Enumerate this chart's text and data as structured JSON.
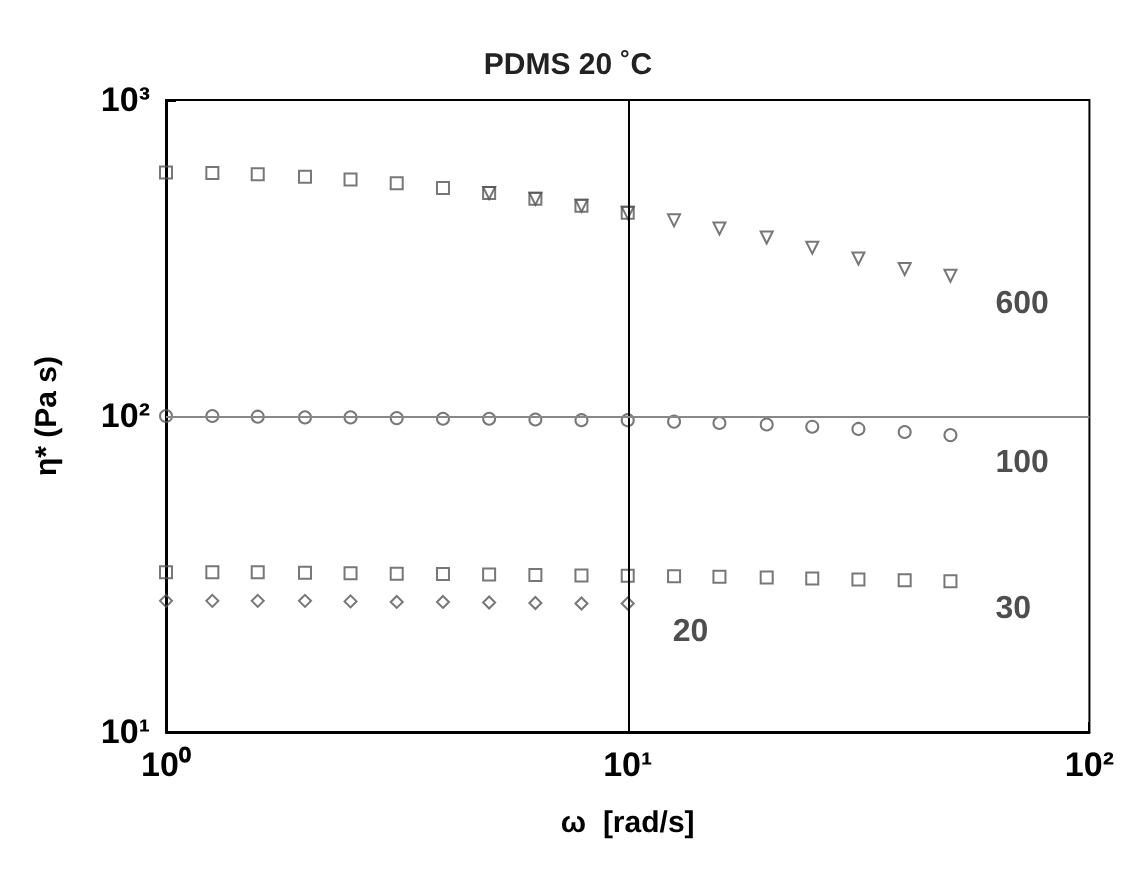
{
  "chart_data": {
    "type": "scatter",
    "title": "PDMS 20 ˚C",
    "xlabel": "ω  [rad/s]",
    "ylabel": "η* (Pa s)",
    "log": "xy",
    "grid": false,
    "legend": false,
    "xlim": [
      1,
      100
    ],
    "ylim": [
      10,
      1000
    ],
    "xticks": [
      {
        "value": 1,
        "label": "10⁰"
      },
      {
        "value": 10,
        "label": "10¹"
      },
      {
        "value": 100,
        "label": "10²"
      }
    ],
    "yticks": [
      {
        "value": 10,
        "label": "10¹"
      },
      {
        "value": 100,
        "label": "10²"
      },
      {
        "value": 1000,
        "label": "10³"
      }
    ],
    "ref_lines": [
      {
        "axis": "x",
        "value": 10,
        "color": "#000000"
      },
      {
        "axis": "y",
        "value": 100,
        "color": "#888888"
      }
    ],
    "series": [
      {
        "marker": "square",
        "color": "#555555",
        "x": [
          1,
          1.26,
          1.58,
          2,
          2.51,
          3.16,
          3.98,
          5.01,
          6.31,
          7.94,
          10
        ],
        "values": [
          590,
          588,
          582,
          572,
          560,
          545,
          527,
          508,
          487,
          463,
          440
        ]
      },
      {
        "name": "600",
        "marker": "triangle",
        "color": "#555555",
        "x": [
          5.01,
          6.31,
          7.94,
          10,
          12.6,
          15.8,
          20,
          25.1,
          31.6,
          39.8,
          50
        ],
        "values": [
          508,
          487,
          463,
          440,
          416,
          392,
          367,
          341,
          315,
          292,
          278
        ]
      },
      {
        "name": "100",
        "marker": "circle",
        "color": "#555555",
        "x": [
          1,
          1.26,
          1.58,
          2,
          2.51,
          3.16,
          3.98,
          5.01,
          6.31,
          7.94,
          10,
          12.6,
          15.8,
          20,
          25.1,
          31.6,
          39.8,
          50
        ],
        "values": [
          100,
          100,
          99.5,
          99,
          99,
          98.5,
          98,
          98,
          97.5,
          97,
          97,
          96,
          95,
          94,
          92.5,
          91,
          89,
          87
        ]
      },
      {
        "name": "30",
        "marker": "square",
        "color": "#555555",
        "x": [
          1,
          1.26,
          1.58,
          2,
          2.51,
          3.16,
          3.98,
          5.01,
          6.31,
          7.94,
          10,
          12.6,
          15.8,
          20,
          25.1,
          31.6,
          39.8,
          50
        ],
        "values": [
          32,
          32,
          32,
          31.9,
          31.8,
          31.7,
          31.6,
          31.5,
          31.4,
          31.3,
          31.2,
          31.1,
          31,
          30.8,
          30.6,
          30.4,
          30.2,
          30
        ]
      },
      {
        "name": "20",
        "marker": "diamond",
        "color": "#555555",
        "x": [
          1,
          1.26,
          1.58,
          2,
          2.51,
          3.16,
          3.98,
          5.01,
          6.31,
          7.94,
          10
        ],
        "values": [
          26,
          26,
          26,
          26,
          25.9,
          25.8,
          25.8,
          25.7,
          25.6,
          25.5,
          25.5
        ]
      }
    ]
  }
}
